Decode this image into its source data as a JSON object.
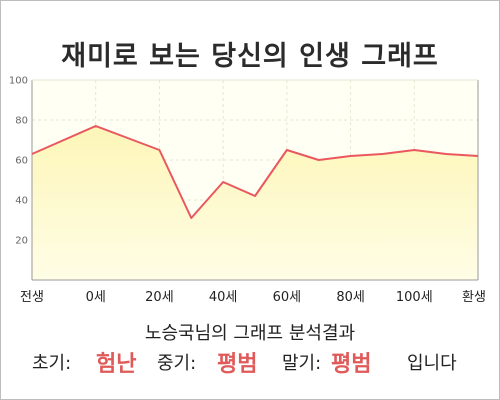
{
  "chart_data": {
    "type": "area",
    "title": "재미로 보는 당신의 인생 그래프",
    "categories": [
      "전생",
      "0세",
      "20세",
      "40세",
      "60세",
      "80세",
      "100세",
      "환생"
    ],
    "x": [
      -20,
      0,
      10,
      20,
      30,
      40,
      50,
      60,
      70,
      80,
      90,
      100,
      110,
      120
    ],
    "values": [
      63,
      77,
      71,
      65,
      31,
      49,
      42,
      65,
      60,
      62,
      63,
      65,
      63,
      62
    ],
    "ylim": [
      0,
      100
    ],
    "xlim": [
      -20,
      120
    ],
    "yticks": [
      "20",
      "40",
      "60",
      "80",
      "100"
    ],
    "xlabel": "",
    "ylabel": "",
    "grid": true,
    "colors": {
      "line": "#e9585e",
      "fill_top": "#fdf6b8",
      "fill_bottom": "#fffde6",
      "plot_bg": "#fffff4",
      "grid": "#e6e6d2",
      "axis": "#9a9a9a"
    }
  },
  "summary": {
    "subtitle": "노승국님의 그래프 분석결과",
    "early_label": "초기:",
    "early_value": "험난",
    "middle_label": "중기:",
    "middle_value": "평범",
    "late_label": "말기:",
    "late_value": "평범",
    "ending": "입니다"
  }
}
